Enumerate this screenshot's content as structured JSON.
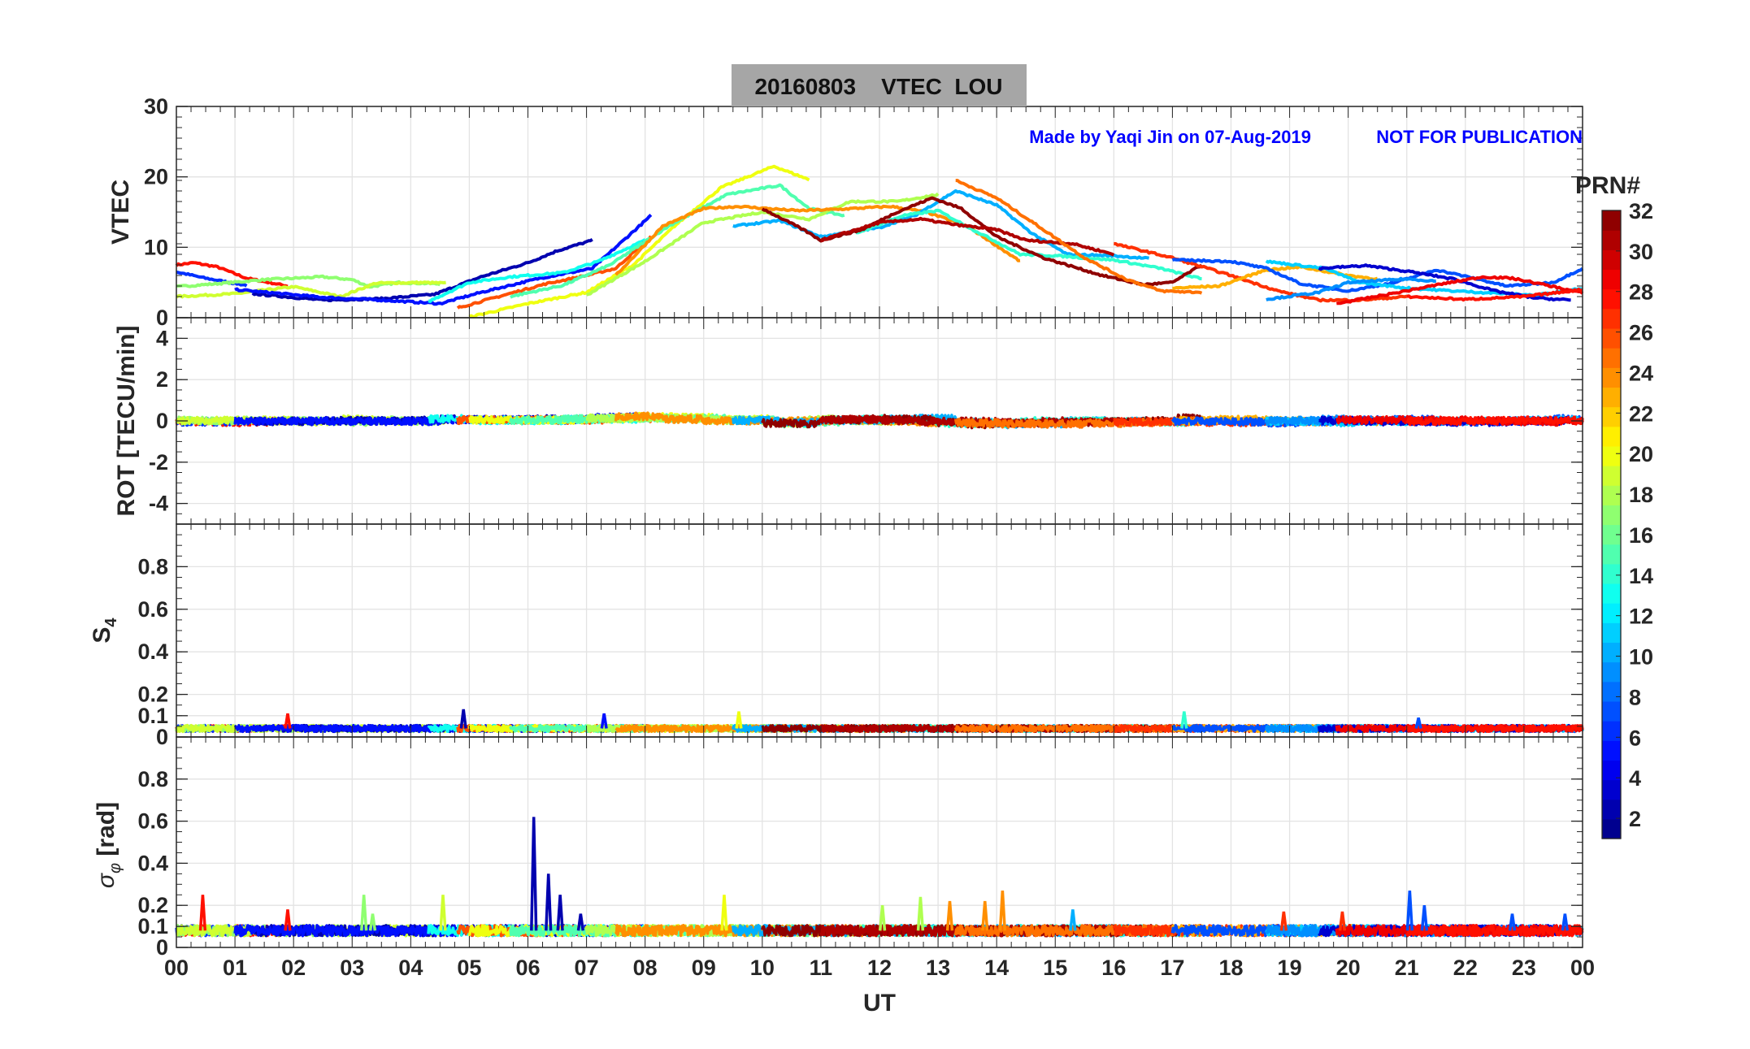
{
  "chart_data": {
    "type": "line",
    "title": "20160803    VTEC  LOU",
    "annotation": "Made by Yaqi Jin on 07-Aug-2019",
    "annotation2": "NOT FOR PUBLICATION",
    "xlabel": "UT",
    "xlim": [
      0,
      24
    ],
    "xtick_labels": [
      "00",
      "01",
      "02",
      "03",
      "04",
      "05",
      "06",
      "07",
      "08",
      "09",
      "10",
      "11",
      "12",
      "13",
      "14",
      "15",
      "16",
      "17",
      "18",
      "19",
      "20",
      "21",
      "22",
      "23",
      "00"
    ],
    "grid": true,
    "colorbar": {
      "label": "PRN#",
      "range": [
        1,
        32
      ],
      "ticks": [
        "2",
        "4",
        "6",
        "8",
        "10",
        "12",
        "14",
        "16",
        "18",
        "20",
        "22",
        "24",
        "26",
        "28",
        "30",
        "32"
      ],
      "colormap": "jet"
    },
    "panels": [
      {
        "id": "vtec",
        "ylabel": "VTEC",
        "ylim": [
          0,
          30
        ],
        "yticks": [
          0,
          10,
          20,
          30
        ],
        "ytick_labels": [
          "0",
          "10",
          "20",
          "30"
        ]
      },
      {
        "id": "rot",
        "ylabel": "ROT [TECU/min]",
        "ylim": [
          -5,
          5
        ],
        "yticks": [
          -4,
          -2,
          0,
          2,
          4
        ],
        "ytick_labels": [
          "-4",
          "-2",
          "0",
          "2",
          "4"
        ]
      },
      {
        "id": "s4",
        "ylabel": "S4",
        "ylim": [
          0,
          1
        ],
        "yticks": [
          0,
          0.1,
          0.2,
          0.4,
          0.6,
          0.8
        ],
        "ytick_labels": [
          "0",
          "0.1",
          "0.2",
          "0.4",
          "0.6",
          "0.8"
        ]
      },
      {
        "id": "sigma",
        "ylabel": "σφ [rad]",
        "ylim": [
          0,
          1
        ],
        "yticks": [
          0,
          0.1,
          0.2,
          0.4,
          0.6,
          0.8
        ],
        "ytick_labels": [
          "0",
          "0.1",
          "0.2",
          "0.4",
          "0.6",
          "0.8"
        ]
      }
    ],
    "series": [
      {
        "prn": 28,
        "vtec": [
          [
            0,
            7.5
          ],
          [
            0.3,
            7.8
          ],
          [
            0.7,
            7.2
          ],
          [
            1.2,
            5.6
          ],
          [
            1.9,
            4.5
          ]
        ]
      },
      {
        "prn": 6,
        "vtec": [
          [
            0,
            6.5
          ],
          [
            0.5,
            5.6
          ],
          [
            1.2,
            4.6
          ]
        ]
      },
      {
        "prn": 17,
        "vtec": [
          [
            0,
            4.4
          ],
          [
            0.8,
            4.9
          ],
          [
            1.5,
            5.4
          ],
          [
            2.5,
            5.8
          ],
          [
            3.0,
            5.4
          ],
          [
            3.3,
            4.4
          ],
          [
            3.8,
            5.0
          ],
          [
            4.5,
            4.8
          ]
        ]
      },
      {
        "prn": 19,
        "vtec": [
          [
            0,
            3.0
          ],
          [
            1,
            3.4
          ],
          [
            2,
            4.4
          ],
          [
            2.8,
            3.0
          ],
          [
            3.4,
            4.9
          ],
          [
            4.2,
            5.0
          ],
          [
            4.6,
            4.9
          ]
        ]
      },
      {
        "prn": 2,
        "vtec": [
          [
            1.3,
            3.4
          ],
          [
            2.5,
            2.5
          ],
          [
            3.5,
            2.7
          ],
          [
            4.4,
            3.3
          ],
          [
            5.2,
            5.8
          ],
          [
            6.0,
            7.8
          ],
          [
            6.5,
            9.5
          ],
          [
            7.1,
            11.0
          ]
        ]
      },
      {
        "prn": 5,
        "vtec": [
          [
            1.0,
            4.0
          ],
          [
            2.5,
            2.9
          ],
          [
            3.5,
            2.5
          ],
          [
            4.5,
            2.0
          ],
          [
            5.2,
            3.6
          ],
          [
            6.2,
            5.6
          ],
          [
            7.1,
            7.0
          ],
          [
            8.1,
            14.5
          ]
        ]
      },
      {
        "prn": 13,
        "vtec": [
          [
            4.3,
            2.3
          ],
          [
            5.0,
            5.0
          ],
          [
            5.7,
            5.8
          ],
          [
            6.6,
            6.4
          ],
          [
            7.2,
            8.0
          ],
          [
            8.0,
            11.0
          ]
        ]
      },
      {
        "prn": 26,
        "vtec": [
          [
            4.8,
            1.4
          ],
          [
            5.5,
            3.0
          ],
          [
            6.3,
            4.8
          ],
          [
            7.0,
            6.0
          ],
          [
            7.5,
            7.0
          ],
          [
            8.1,
            11.5
          ]
        ]
      },
      {
        "prn": 20,
        "vtec": [
          [
            5.0,
            0.1
          ],
          [
            6.0,
            2.0
          ],
          [
            7.0,
            3.6
          ],
          [
            7.8,
            7.5
          ],
          [
            8.5,
            13.0
          ],
          [
            9.3,
            18.5
          ],
          [
            10.2,
            21.5
          ],
          [
            10.8,
            19.6
          ]
        ]
      },
      {
        "prn": 15,
        "vtec": [
          [
            5.7,
            3.0
          ],
          [
            6.6,
            4.6
          ],
          [
            7.4,
            7.5
          ],
          [
            8.4,
            13.0
          ],
          [
            9.4,
            17.5
          ],
          [
            10.3,
            18.8
          ],
          [
            10.8,
            15.5
          ],
          [
            11.4,
            14.5
          ]
        ]
      },
      {
        "prn": 18,
        "vtec": [
          [
            7.0,
            3.2
          ],
          [
            8.0,
            8.0
          ],
          [
            9.0,
            13.5
          ],
          [
            10.0,
            15.0
          ],
          [
            10.8,
            14.0
          ],
          [
            11.5,
            16.5
          ],
          [
            12.3,
            16.5
          ],
          [
            13.0,
            17.5
          ]
        ]
      },
      {
        "prn": 24,
        "vtec": [
          [
            7.5,
            6.0
          ],
          [
            8.3,
            13.0
          ],
          [
            9.0,
            15.5
          ],
          [
            9.6,
            15.8
          ],
          [
            10.6,
            15.2
          ],
          [
            11.3,
            15.4
          ],
          [
            12.2,
            15.8
          ],
          [
            12.8,
            15.0
          ],
          [
            13.5,
            13.0
          ],
          [
            14.4,
            8.0
          ]
        ]
      },
      {
        "prn": 10,
        "vtec": [
          [
            9.5,
            13.0
          ],
          [
            10.3,
            13.8
          ],
          [
            11.0,
            11.5
          ],
          [
            12.0,
            12.8
          ],
          [
            12.6,
            14.5
          ],
          [
            13.3,
            18.0
          ],
          [
            14.0,
            16.0
          ],
          [
            14.6,
            12.0
          ],
          [
            15.2,
            9.0
          ],
          [
            16.0,
            8.8
          ],
          [
            16.6,
            8.4
          ]
        ]
      },
      {
        "prn": 14,
        "vtec": [
          [
            11.6,
            12.0
          ],
          [
            12.4,
            14.5
          ],
          [
            13.0,
            15.2
          ],
          [
            13.6,
            12.5
          ],
          [
            14.4,
            9.0
          ],
          [
            15.0,
            8.8
          ],
          [
            16.0,
            8.2
          ],
          [
            16.8,
            7.0
          ],
          [
            17.5,
            5.5
          ]
        ]
      },
      {
        "prn": 32,
        "vtec": [
          [
            10.0,
            15.5
          ],
          [
            10.7,
            12.5
          ],
          [
            11.0,
            11.0
          ],
          [
            11.7,
            12.5
          ],
          [
            12.3,
            15.0
          ],
          [
            12.9,
            17.0
          ],
          [
            13.4,
            15.5
          ],
          [
            14.0,
            11.5
          ],
          [
            14.8,
            8.5
          ],
          [
            15.8,
            6.0
          ],
          [
            16.5,
            4.7
          ],
          [
            17.0,
            5.0
          ],
          [
            17.5,
            7.5
          ]
        ]
      },
      {
        "prn": 31,
        "vtec": [
          [
            11.0,
            11.0
          ],
          [
            12.0,
            13.5
          ],
          [
            12.7,
            14.0
          ],
          [
            13.3,
            13.2
          ],
          [
            14.0,
            12.5
          ],
          [
            14.5,
            11.0
          ],
          [
            15.3,
            10.5
          ],
          [
            16.0,
            9.0
          ]
        ]
      },
      {
        "prn": 25,
        "vtec": [
          [
            13.3,
            19.5
          ],
          [
            14.0,
            17.0
          ],
          [
            14.8,
            12.5
          ],
          [
            15.5,
            8.5
          ],
          [
            16.2,
            5.5
          ],
          [
            16.8,
            3.8
          ],
          [
            17.5,
            3.6
          ]
        ]
      },
      {
        "prn": 27,
        "vtec": [
          [
            16.0,
            10.5
          ],
          [
            17.0,
            8.5
          ],
          [
            18.0,
            6.0
          ],
          [
            18.8,
            3.8
          ],
          [
            19.5,
            2.5
          ],
          [
            20.2,
            2.5
          ],
          [
            21.0,
            3.0
          ]
        ]
      },
      {
        "prn": 23,
        "vtec": [
          [
            17.0,
            4.2
          ],
          [
            17.8,
            4.5
          ],
          [
            18.6,
            6.8
          ],
          [
            19.2,
            7.2
          ],
          [
            20.0,
            6.0
          ],
          [
            20.5,
            5.5
          ]
        ]
      },
      {
        "prn": 7,
        "vtec": [
          [
            17.0,
            8.2
          ],
          [
            18.0,
            8.0
          ],
          [
            18.6,
            7.0
          ],
          [
            19.2,
            4.8
          ],
          [
            20.0,
            3.8
          ],
          [
            20.8,
            5.0
          ],
          [
            21.5,
            6.8
          ],
          [
            22.2,
            5.5
          ],
          [
            22.7,
            4.5
          ],
          [
            23.5,
            5.0
          ],
          [
            24.0,
            7.0
          ]
        ]
      },
      {
        "prn": 11,
        "vtec": [
          [
            18.6,
            8.0
          ],
          [
            19.6,
            7.0
          ],
          [
            20.2,
            5.0
          ],
          [
            21.0,
            4.2
          ],
          [
            21.8,
            3.8
          ],
          [
            22.5,
            3.5
          ],
          [
            23.2,
            3.2
          ],
          [
            24.0,
            4.2
          ]
        ]
      },
      {
        "prn": 9,
        "vtec": [
          [
            18.6,
            2.6
          ],
          [
            19.5,
            3.6
          ],
          [
            20.0,
            5.0
          ],
          [
            21.0,
            5.5
          ],
          [
            21.5,
            5.2
          ]
        ]
      },
      {
        "prn": 3,
        "vtec": [
          [
            19.5,
            7.0
          ],
          [
            20.3,
            7.4
          ],
          [
            21.0,
            6.6
          ],
          [
            21.8,
            5.5
          ],
          [
            22.5,
            3.8
          ],
          [
            23.2,
            2.8
          ],
          [
            23.8,
            2.5
          ]
        ]
      },
      {
        "prn": 29,
        "vtec": [
          [
            19.8,
            2.0
          ],
          [
            20.8,
            3.5
          ],
          [
            21.6,
            4.8
          ],
          [
            22.3,
            5.8
          ],
          [
            22.8,
            5.6
          ],
          [
            23.4,
            4.6
          ],
          [
            24.0,
            3.5
          ]
        ]
      },
      {
        "prn": 28,
        "vtec": [
          [
            21.0,
            3.0
          ],
          [
            22.0,
            2.6
          ],
          [
            23.0,
            3.0
          ],
          [
            24.0,
            4.0
          ]
        ]
      }
    ],
    "s4_baseline": 0.04,
    "sigma_baseline": 0.08,
    "s4_spikes": [
      [
        1.9,
        0.11
      ],
      [
        4.9,
        0.13
      ],
      [
        7.3,
        0.11
      ],
      [
        9.6,
        0.12
      ],
      [
        17.2,
        0.12
      ],
      [
        21.2,
        0.09
      ]
    ],
    "sigma_spikes": [
      [
        0.45,
        0.25
      ],
      [
        1.9,
        0.18
      ],
      [
        3.2,
        0.25
      ],
      [
        3.35,
        0.16
      ],
      [
        4.55,
        0.25
      ],
      [
        6.1,
        0.62
      ],
      [
        6.35,
        0.35
      ],
      [
        6.55,
        0.25
      ],
      [
        6.9,
        0.16
      ],
      [
        9.35,
        0.25
      ],
      [
        12.05,
        0.2
      ],
      [
        12.7,
        0.24
      ],
      [
        13.2,
        0.22
      ],
      [
        13.8,
        0.22
      ],
      [
        14.1,
        0.27
      ],
      [
        15.3,
        0.18
      ],
      [
        18.9,
        0.17
      ],
      [
        19.9,
        0.17
      ],
      [
        21.05,
        0.27
      ],
      [
        21.3,
        0.2
      ],
      [
        22.8,
        0.16
      ],
      [
        23.7,
        0.16
      ]
    ]
  }
}
